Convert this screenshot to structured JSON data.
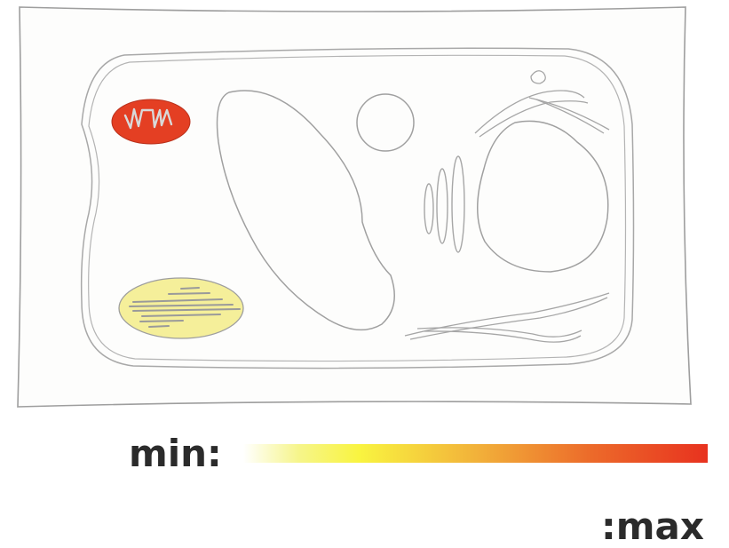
{
  "legend": {
    "min_label": "min:",
    "max_label": ":max",
    "gradient_colors": [
      "#ffffff",
      "#f6f58a",
      "#f9f440",
      "#f2b23a",
      "#ec6a2a",
      "#e8321f"
    ]
  },
  "organelles": [
    {
      "name": "cell-wall",
      "fill": "#fdfdfc"
    },
    {
      "name": "plasma-membrane",
      "fill": "#fdfdfc"
    },
    {
      "name": "mitochondrion",
      "fill": "#e43f23"
    },
    {
      "name": "chloroplast",
      "fill": "#f5ef9a"
    },
    {
      "name": "vacuole",
      "fill": "#fdfdfc"
    },
    {
      "name": "nucleus",
      "fill": "#fdfdfc"
    },
    {
      "name": "golgi-apparatus",
      "fill": "#fdfdfc"
    },
    {
      "name": "vesicle",
      "fill": "#fdfdfc"
    },
    {
      "name": "endoplasmic-reticulum",
      "fill": "#fdfdfc"
    }
  ]
}
